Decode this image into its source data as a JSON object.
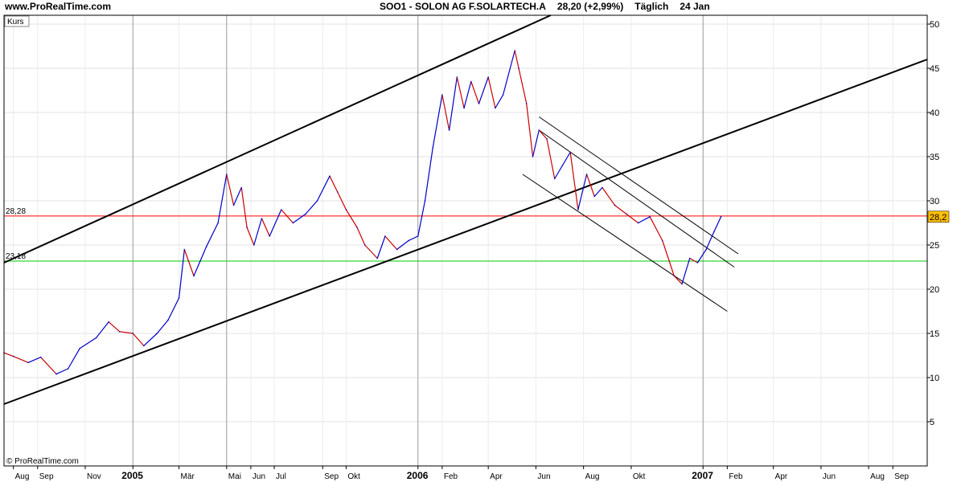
{
  "header": {
    "site": "www.ProRealTime.com",
    "symbol": "SOO1 - SOLON AG F.SOLARTECH.A",
    "quote": "28,20 (+2,99%)",
    "period": "Täglich",
    "date": "24 Jan"
  },
  "panel_label": "Kurs",
  "copyright": "© ProRealTime.com",
  "chart_data": {
    "type": "line",
    "ylim": [
      0,
      51
    ],
    "y_ticks": [
      5,
      10,
      15,
      20,
      25,
      30,
      35,
      40,
      45,
      50
    ],
    "x_range": [
      "2004-07-20",
      "2007-10-15"
    ],
    "x_ticks": [
      {
        "label": "Aug",
        "date": "2004-08-01",
        "year": false,
        "grid": false
      },
      {
        "label": "Sep",
        "date": "2004-09-01",
        "year": false,
        "grid": false
      },
      {
        "label": "Nov",
        "date": "2004-11-01",
        "year": false,
        "grid": false
      },
      {
        "label": "2005",
        "date": "2005-01-01",
        "year": true,
        "grid": true
      },
      {
        "label": "Mär",
        "date": "2005-03-01",
        "year": false,
        "grid": false
      },
      {
        "label": "Mai",
        "date": "2005-05-01",
        "year": false,
        "grid": true
      },
      {
        "label": "Jun",
        "date": "2005-06-01",
        "year": false,
        "grid": false
      },
      {
        "label": "Jul",
        "date": "2005-07-01",
        "year": false,
        "grid": false
      },
      {
        "label": "Sep",
        "date": "2005-09-01",
        "year": false,
        "grid": false
      },
      {
        "label": "Okt",
        "date": "2005-10-01",
        "year": false,
        "grid": false
      },
      {
        "label": "2006",
        "date": "2006-01-01",
        "year": true,
        "grid": true
      },
      {
        "label": "Feb",
        "date": "2006-02-01",
        "year": false,
        "grid": false
      },
      {
        "label": "Apr",
        "date": "2006-04-01",
        "year": false,
        "grid": false
      },
      {
        "label": "Jun",
        "date": "2006-06-01",
        "year": false,
        "grid": false
      },
      {
        "label": "Aug",
        "date": "2006-08-01",
        "year": false,
        "grid": false
      },
      {
        "label": "Okt",
        "date": "2006-10-01",
        "year": false,
        "grid": false
      },
      {
        "label": "2007",
        "date": "2007-01-01",
        "year": true,
        "grid": true
      },
      {
        "label": "Feb",
        "date": "2007-02-01",
        "year": false,
        "grid": false
      },
      {
        "label": "Apr",
        "date": "2007-04-01",
        "year": false,
        "grid": false
      },
      {
        "label": "Jun",
        "date": "2007-06-01",
        "year": false,
        "grid": false
      },
      {
        "label": "Aug",
        "date": "2007-08-01",
        "year": false,
        "grid": false
      },
      {
        "label": "Sep",
        "date": "2007-09-01",
        "year": false,
        "grid": false
      }
    ],
    "series": [
      {
        "points": [
          [
            "2004-07-20",
            12.8
          ],
          [
            "2004-08-01",
            12.4
          ],
          [
            "2004-08-20",
            11.7
          ],
          [
            "2004-09-05",
            12.3
          ],
          [
            "2004-09-25",
            10.4
          ],
          [
            "2004-10-10",
            11.0
          ],
          [
            "2004-10-25",
            13.3
          ],
          [
            "2004-11-15",
            14.5
          ],
          [
            "2004-12-01",
            16.3
          ],
          [
            "2004-12-15",
            15.2
          ],
          [
            "2005-01-01",
            15.0
          ],
          [
            "2005-01-15",
            13.6
          ],
          [
            "2005-02-01",
            15.0
          ],
          [
            "2005-02-15",
            16.5
          ],
          [
            "2005-03-01",
            19.0
          ],
          [
            "2005-03-08",
            24.5
          ],
          [
            "2005-03-20",
            21.5
          ],
          [
            "2005-04-05",
            24.8
          ],
          [
            "2005-04-20",
            27.5
          ],
          [
            "2005-05-01",
            33.0
          ],
          [
            "2005-05-10",
            29.5
          ],
          [
            "2005-05-20",
            31.5
          ],
          [
            "2005-05-27",
            27.0
          ],
          [
            "2005-06-05",
            25.0
          ],
          [
            "2005-06-15",
            28.0
          ],
          [
            "2005-06-25",
            26.0
          ],
          [
            "2005-07-10",
            29.0
          ],
          [
            "2005-07-25",
            27.5
          ],
          [
            "2005-08-10",
            28.5
          ],
          [
            "2005-08-25",
            30.0
          ],
          [
            "2005-09-10",
            32.8
          ],
          [
            "2005-09-20",
            31.0
          ],
          [
            "2005-10-01",
            29.0
          ],
          [
            "2005-10-15",
            27.0
          ],
          [
            "2005-10-25",
            25.0
          ],
          [
            "2005-11-10",
            23.5
          ],
          [
            "2005-11-20",
            26.0
          ],
          [
            "2005-12-05",
            24.5
          ],
          [
            "2005-12-20",
            25.5
          ],
          [
            "2006-01-01",
            26.0
          ],
          [
            "2006-01-10",
            30.0
          ],
          [
            "2006-01-20",
            36.0
          ],
          [
            "2006-02-01",
            42.0
          ],
          [
            "2006-02-10",
            38.0
          ],
          [
            "2006-02-20",
            44.0
          ],
          [
            "2006-03-01",
            40.5
          ],
          [
            "2006-03-10",
            43.5
          ],
          [
            "2006-03-20",
            41.0
          ],
          [
            "2006-04-01",
            44.0
          ],
          [
            "2006-04-10",
            40.5
          ],
          [
            "2006-04-20",
            42.0
          ],
          [
            "2006-05-05",
            47.0
          ],
          [
            "2006-05-10",
            45.0
          ],
          [
            "2006-05-20",
            41.0
          ],
          [
            "2006-05-28",
            35.0
          ],
          [
            "2006-06-05",
            38.0
          ],
          [
            "2006-06-15",
            37.0
          ],
          [
            "2006-06-25",
            32.5
          ],
          [
            "2006-07-05",
            34.0
          ],
          [
            "2006-07-15",
            35.5
          ],
          [
            "2006-07-25",
            29.0
          ],
          [
            "2006-08-05",
            33.0
          ],
          [
            "2006-08-15",
            30.5
          ],
          [
            "2006-08-25",
            31.5
          ],
          [
            "2006-09-10",
            29.5
          ],
          [
            "2006-09-25",
            28.5
          ],
          [
            "2006-10-10",
            27.5
          ],
          [
            "2006-10-25",
            28.2
          ],
          [
            "2006-11-10",
            25.5
          ],
          [
            "2006-11-25",
            21.5
          ],
          [
            "2006-12-05",
            20.6
          ],
          [
            "2006-12-15",
            23.5
          ],
          [
            "2006-12-25",
            23.0
          ],
          [
            "2007-01-05",
            24.5
          ],
          [
            "2007-01-15",
            26.5
          ],
          [
            "2007-01-24",
            28.2
          ]
        ]
      }
    ],
    "h_lines": [
      {
        "value": 28.28,
        "label": "28,28",
        "color": "#ff0000"
      },
      {
        "value": 23.18,
        "label": "23,18",
        "color": "#00cc00"
      }
    ],
    "trend_lines": [
      {
        "from": [
          "2004-07-20",
          23.0
        ],
        "to": [
          "2006-06-20",
          51.0
        ],
        "weight": "bold"
      },
      {
        "from": [
          "2004-07-20",
          7.0
        ],
        "to": [
          "2007-10-15",
          46.0
        ],
        "weight": "bold"
      },
      {
        "from": [
          "2006-06-05",
          39.5
        ],
        "to": [
          "2007-02-15",
          24.0
        ],
        "weight": "thin"
      },
      {
        "from": [
          "2006-06-05",
          38.0
        ],
        "to": [
          "2007-02-10",
          22.5
        ],
        "weight": "thin"
      },
      {
        "from": [
          "2006-05-15",
          33.0
        ],
        "to": [
          "2007-02-01",
          17.5
        ],
        "weight": "thin"
      }
    ],
    "last_value_label": "28,2",
    "accent_color": "#ffc000",
    "up_color": "#0000cc",
    "down_color": "#cc0000",
    "grid": true
  }
}
